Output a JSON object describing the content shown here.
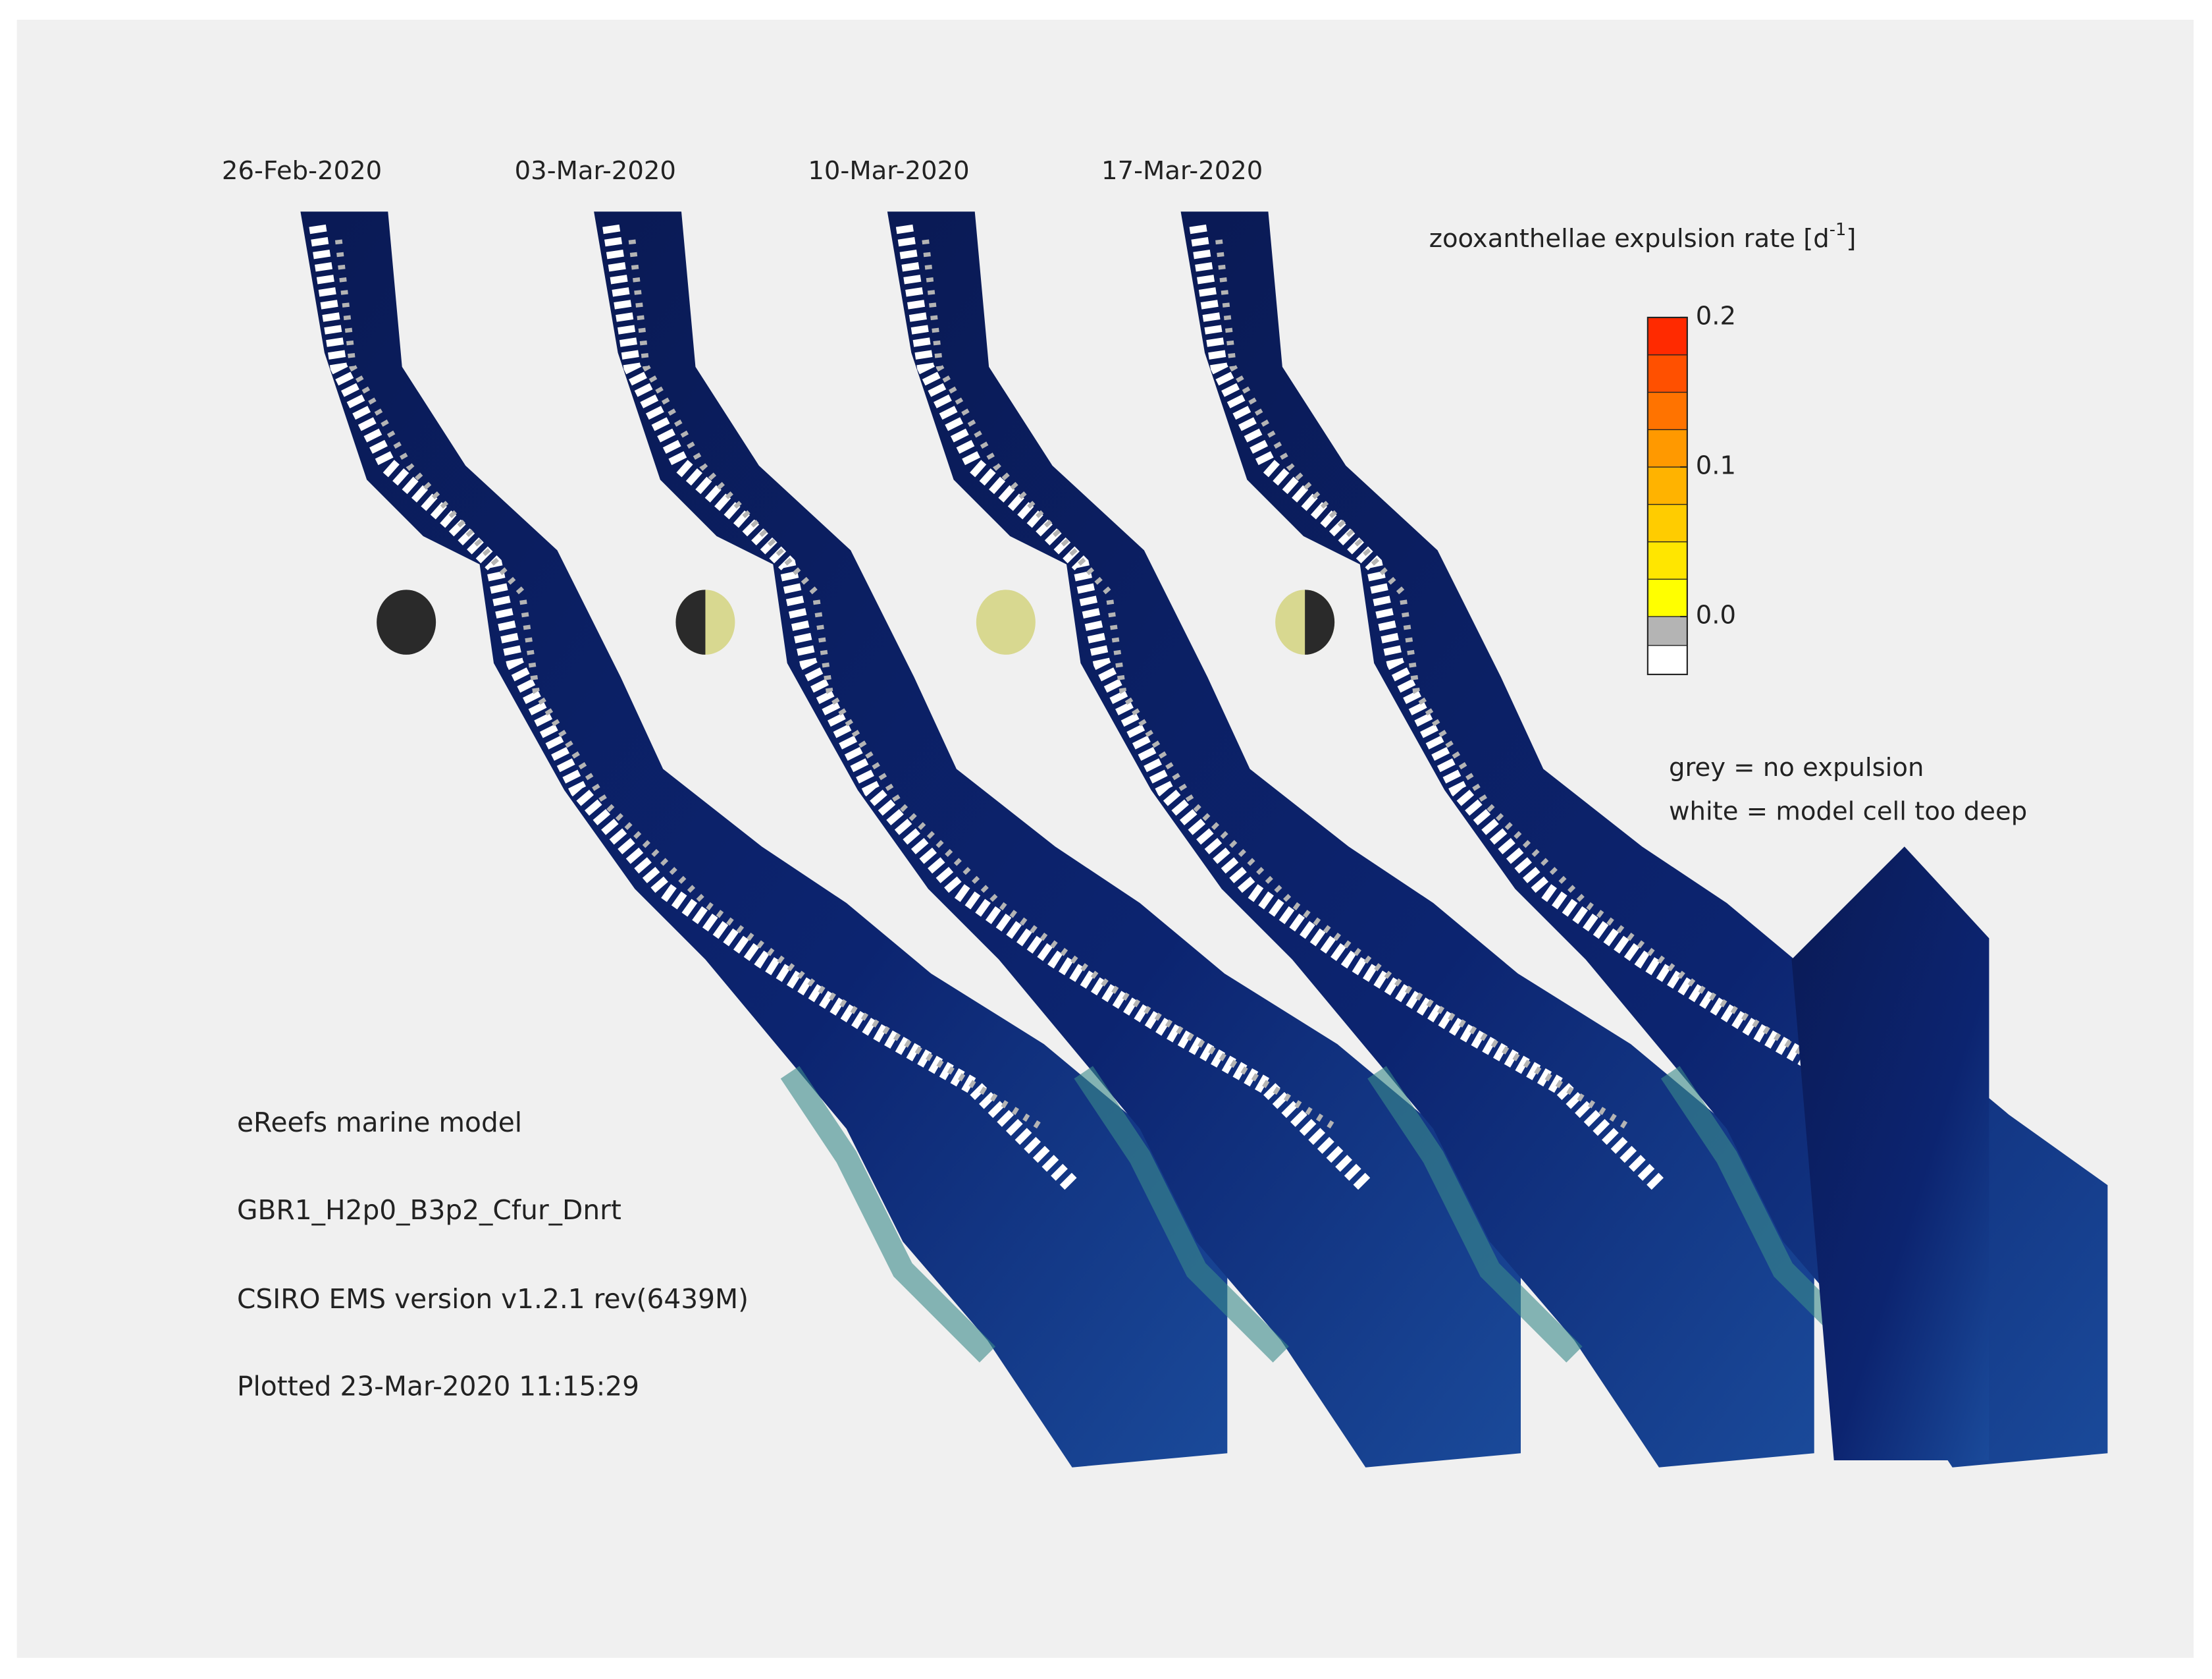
{
  "panels": [
    {
      "date": "26-Feb-2020"
    },
    {
      "date": "03-Mar-2020"
    },
    {
      "date": "10-Mar-2020"
    },
    {
      "date": "17-Mar-2020"
    }
  ],
  "colorbar": {
    "title": "zooxanthellae expulsion rate [d",
    "title_sup": "-1",
    "title_end": "]",
    "lim": [
      0,
      0.2
    ],
    "ticks": [
      0.2,
      0.1,
      {
        "value": 0,
        "label": "0.0"
      }
    ],
    "colors": [
      "#ffff00",
      "#ffe600",
      "#ffcc00",
      "#ffb300",
      "#ff9900",
      "#ff7300",
      "#ff5000",
      "#ff2a00"
    ],
    "below_colors": [
      "#b4b4b4",
      "#ffffff"
    ]
  },
  "notes": [
    "grey = no expulsion",
    "white = model cell too deep"
  ],
  "info": [
    "eReefs marine model",
    "GBR1_H2p0_B3p2_Cfur_Dnrt",
    "CSIRO EMS version v1.2.1 rev(6439M)",
    "Plotted 23-Mar-2020 11:15:29"
  ]
}
